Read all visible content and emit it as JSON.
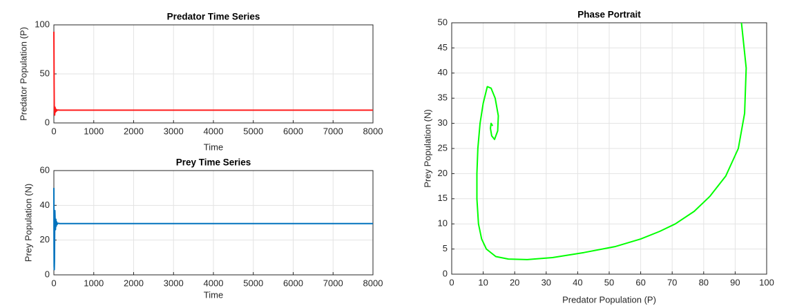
{
  "chart_data": [
    {
      "type": "line",
      "title": "Predator Time Series",
      "xlabel": "Time",
      "ylabel": "Predator Population (P)",
      "x": [
        0,
        3,
        6,
        10,
        15,
        20,
        25,
        30,
        40,
        50,
        60,
        70,
        80,
        100,
        150,
        200,
        500,
        1000,
        2000,
        3000,
        4000,
        5000,
        6000,
        7000,
        8000
      ],
      "series": [
        {
          "color": "#ff1a1a",
          "values": [
            93,
            70,
            40,
            18,
            10,
            8,
            12,
            16,
            11,
            14,
            12,
            13.5,
            12.8,
            13.2,
            13,
            13,
            13,
            13,
            13,
            13,
            13,
            13,
            13,
            13,
            13
          ]
        }
      ],
      "xlim": [
        0,
        8000
      ],
      "xticks": [
        0,
        1000,
        2000,
        3000,
        4000,
        5000,
        6000,
        7000,
        8000
      ],
      "ylim": [
        0,
        100
      ],
      "yticks": [
        0,
        50,
        100
      ],
      "grid": true
    },
    {
      "type": "line",
      "title": "Prey Time Series",
      "xlabel": "Time",
      "ylabel": "Prey Population (N)",
      "x": [
        0,
        3,
        6,
        10,
        15,
        20,
        25,
        30,
        35,
        40,
        50,
        60,
        70,
        80,
        100,
        150,
        200,
        500,
        1000,
        2000,
        3000,
        4000,
        5000,
        6000,
        7000,
        8000
      ],
      "series": [
        {
          "color": "#0072bd",
          "values": [
            50,
            20,
            5,
            3,
            8,
            25,
            37,
            33,
            27,
            26,
            32,
            28,
            30.5,
            29,
            29.7,
            29.5,
            29.5,
            29.5,
            29.5,
            29.5,
            29.5,
            29.5,
            29.5,
            29.5,
            29.5,
            29.5
          ]
        }
      ],
      "xlim": [
        0,
        8000
      ],
      "xticks": [
        0,
        1000,
        2000,
        3000,
        4000,
        5000,
        6000,
        7000,
        8000
      ],
      "ylim": [
        0,
        60
      ],
      "yticks": [
        0,
        20,
        40,
        60
      ],
      "grid": true
    },
    {
      "type": "line",
      "title": "Phase Portrait",
      "xlabel": "Predator Population (P)",
      "ylabel": "Prey Population (N)",
      "x": [
        92,
        93.5,
        93,
        91,
        87,
        82,
        77,
        71,
        66,
        60,
        52,
        42,
        32,
        24,
        18,
        14,
        11,
        9.5,
        8.5,
        8,
        8,
        8.3,
        9,
        10,
        11.3,
        12.5,
        13.8,
        14.8,
        14.6,
        13.6,
        12.7,
        12.3,
        12.5,
        13
      ],
      "series": [
        {
          "color": "#00ff00",
          "values": [
            50,
            41,
            32,
            25,
            19.5,
            15.5,
            12.5,
            10,
            8.5,
            7,
            5.5,
            4.3,
            3.3,
            2.9,
            3,
            3.5,
            5,
            7,
            10,
            15,
            20,
            25,
            30,
            34,
            37.3,
            37,
            35,
            31.5,
            28.5,
            26.8,
            27.5,
            29,
            30,
            29.5
          ]
        }
      ],
      "xlim": [
        0,
        100
      ],
      "xticks": [
        0,
        10,
        20,
        30,
        40,
        50,
        60,
        70,
        80,
        90,
        100
      ],
      "ylim": [
        0,
        50
      ],
      "yticks": [
        0,
        5,
        10,
        15,
        20,
        25,
        30,
        35,
        40,
        45,
        50
      ],
      "grid": true
    }
  ]
}
